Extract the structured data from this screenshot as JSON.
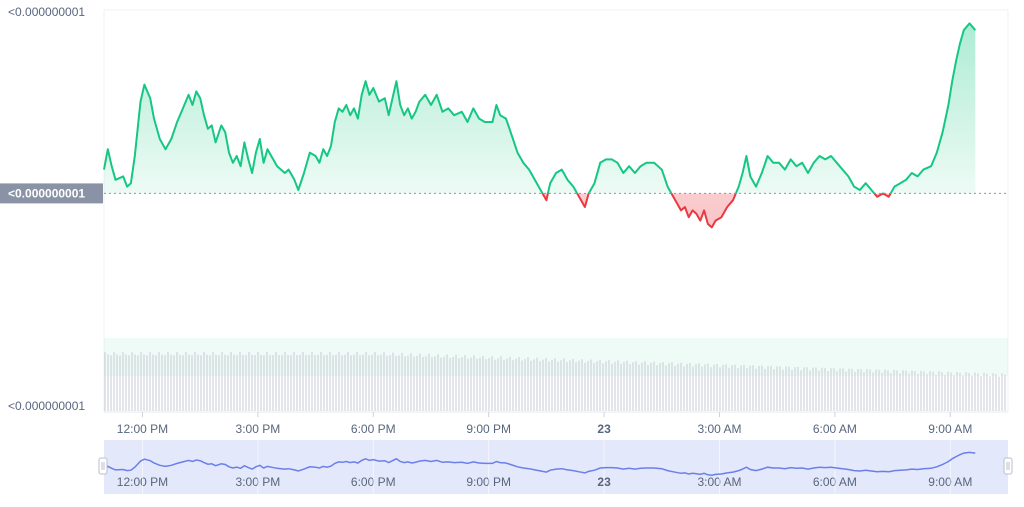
{
  "chart_data": {
    "type": "area",
    "title": "",
    "xlabel": "",
    "ylabel": "",
    "y_labels": {
      "top": "<0.000000001",
      "current": "<0.000000001",
      "bottom": "<0.000000001"
    },
    "x_ticks": [
      "12:00 PM",
      "3:00 PM",
      "6:00 PM",
      "9:00 PM",
      "23",
      "3:00 AM",
      "6:00 AM",
      "9:00 AM"
    ],
    "x_tick_hours": [
      1,
      4,
      7,
      10,
      13,
      16,
      19,
      22
    ],
    "xlim_hours": [
      0,
      23.5
    ],
    "baseline_index": 49,
    "ylim_index": [
      0,
      100
    ],
    "price_index_points": [
      [
        0.0,
        56
      ],
      [
        0.1,
        62
      ],
      [
        0.2,
        57
      ],
      [
        0.3,
        53
      ],
      [
        0.5,
        54
      ],
      [
        0.6,
        51
      ],
      [
        0.7,
        52
      ],
      [
        0.8,
        60
      ],
      [
        0.95,
        76
      ],
      [
        1.05,
        81
      ],
      [
        1.2,
        77
      ],
      [
        1.3,
        71
      ],
      [
        1.45,
        65
      ],
      [
        1.6,
        62
      ],
      [
        1.75,
        65
      ],
      [
        1.9,
        70
      ],
      [
        2.05,
        74
      ],
      [
        2.2,
        78
      ],
      [
        2.3,
        75
      ],
      [
        2.4,
        79
      ],
      [
        2.5,
        77
      ],
      [
        2.6,
        72
      ],
      [
        2.7,
        68
      ],
      [
        2.8,
        69
      ],
      [
        2.9,
        64
      ],
      [
        3.05,
        69
      ],
      [
        3.15,
        67
      ],
      [
        3.25,
        61
      ],
      [
        3.35,
        58
      ],
      [
        3.45,
        60
      ],
      [
        3.55,
        57
      ],
      [
        3.65,
        64
      ],
      [
        3.75,
        59
      ],
      [
        3.85,
        55
      ],
      [
        3.95,
        61
      ],
      [
        4.05,
        65
      ],
      [
        4.15,
        58
      ],
      [
        4.25,
        62
      ],
      [
        4.35,
        60
      ],
      [
        4.5,
        57
      ],
      [
        4.6,
        56
      ],
      [
        4.7,
        55
      ],
      [
        4.8,
        56
      ],
      [
        4.95,
        53
      ],
      [
        5.05,
        50
      ],
      [
        5.2,
        55
      ],
      [
        5.35,
        61
      ],
      [
        5.5,
        60
      ],
      [
        5.6,
        58
      ],
      [
        5.7,
        62
      ],
      [
        5.8,
        60
      ],
      [
        5.9,
        63
      ],
      [
        6.0,
        70
      ],
      [
        6.1,
        74
      ],
      [
        6.2,
        73
      ],
      [
        6.3,
        75
      ],
      [
        6.4,
        72
      ],
      [
        6.5,
        74
      ],
      [
        6.6,
        71
      ],
      [
        6.7,
        78
      ],
      [
        6.8,
        82
      ],
      [
        6.9,
        78
      ],
      [
        7.0,
        80
      ],
      [
        7.15,
        76
      ],
      [
        7.3,
        77
      ],
      [
        7.4,
        72
      ],
      [
        7.5,
        77
      ],
      [
        7.6,
        82
      ],
      [
        7.7,
        75
      ],
      [
        7.8,
        72
      ],
      [
        7.9,
        74
      ],
      [
        8.0,
        71
      ],
      [
        8.1,
        73
      ],
      [
        8.2,
        76
      ],
      [
        8.35,
        78
      ],
      [
        8.5,
        75
      ],
      [
        8.65,
        78
      ],
      [
        8.8,
        73
      ],
      [
        8.95,
        74
      ],
      [
        9.1,
        72
      ],
      [
        9.3,
        73
      ],
      [
        9.45,
        70
      ],
      [
        9.6,
        74
      ],
      [
        9.75,
        71
      ],
      [
        9.9,
        70
      ],
      [
        10.1,
        70
      ],
      [
        10.2,
        75
      ],
      [
        10.3,
        72
      ],
      [
        10.45,
        71
      ],
      [
        10.6,
        66
      ],
      [
        10.75,
        61
      ],
      [
        10.9,
        58
      ],
      [
        11.05,
        56
      ],
      [
        11.2,
        53
      ],
      [
        11.35,
        50
      ],
      [
        11.5,
        47
      ],
      [
        11.6,
        52
      ],
      [
        11.75,
        55
      ],
      [
        11.9,
        56
      ],
      [
        12.05,
        53
      ],
      [
        12.2,
        51
      ],
      [
        12.35,
        48
      ],
      [
        12.5,
        45
      ],
      [
        12.6,
        49
      ],
      [
        12.75,
        52
      ],
      [
        12.9,
        58
      ],
      [
        13.05,
        59
      ],
      [
        13.2,
        59
      ],
      [
        13.35,
        58
      ],
      [
        13.5,
        55
      ],
      [
        13.65,
        57
      ],
      [
        13.8,
        55
      ],
      [
        13.95,
        57
      ],
      [
        14.1,
        58
      ],
      [
        14.3,
        58
      ],
      [
        14.5,
        56
      ],
      [
        14.65,
        51
      ],
      [
        14.8,
        48
      ],
      [
        15.0,
        44
      ],
      [
        15.1,
        45
      ],
      [
        15.2,
        42
      ],
      [
        15.3,
        44
      ],
      [
        15.4,
        43
      ],
      [
        15.5,
        41
      ],
      [
        15.6,
        44
      ],
      [
        15.7,
        40
      ],
      [
        15.8,
        39
      ],
      [
        15.9,
        41
      ],
      [
        16.05,
        42
      ],
      [
        16.2,
        45
      ],
      [
        16.35,
        47
      ],
      [
        16.5,
        51
      ],
      [
        16.6,
        55
      ],
      [
        16.7,
        60
      ],
      [
        16.8,
        54
      ],
      [
        16.95,
        51
      ],
      [
        17.1,
        55
      ],
      [
        17.25,
        60
      ],
      [
        17.4,
        58
      ],
      [
        17.55,
        58
      ],
      [
        17.7,
        56
      ],
      [
        17.85,
        59
      ],
      [
        18.0,
        57
      ],
      [
        18.15,
        58
      ],
      [
        18.3,
        55
      ],
      [
        18.45,
        58
      ],
      [
        18.6,
        60
      ],
      [
        18.75,
        59
      ],
      [
        18.9,
        60
      ],
      [
        19.05,
        58
      ],
      [
        19.2,
        56
      ],
      [
        19.35,
        54
      ],
      [
        19.5,
        51
      ],
      [
        19.65,
        50
      ],
      [
        19.8,
        52
      ],
      [
        19.95,
        50
      ],
      [
        20.1,
        48
      ],
      [
        20.25,
        49
      ],
      [
        20.4,
        48
      ],
      [
        20.55,
        51
      ],
      [
        20.7,
        52
      ],
      [
        20.85,
        53
      ],
      [
        21.0,
        55
      ],
      [
        21.15,
        54
      ],
      [
        21.3,
        56
      ],
      [
        21.5,
        57
      ],
      [
        21.65,
        61
      ],
      [
        21.8,
        67
      ],
      [
        21.95,
        75
      ],
      [
        22.05,
        82
      ],
      [
        22.15,
        88
      ],
      [
        22.25,
        93
      ],
      [
        22.35,
        97
      ],
      [
        22.5,
        99
      ],
      [
        22.65,
        97
      ]
    ],
    "colors": {
      "up": "#16c784",
      "down": "#ea3943",
      "volume": "#c7cbd4",
      "navigator": "#6c7fe8"
    },
    "grid": false,
    "legend": "none"
  }
}
